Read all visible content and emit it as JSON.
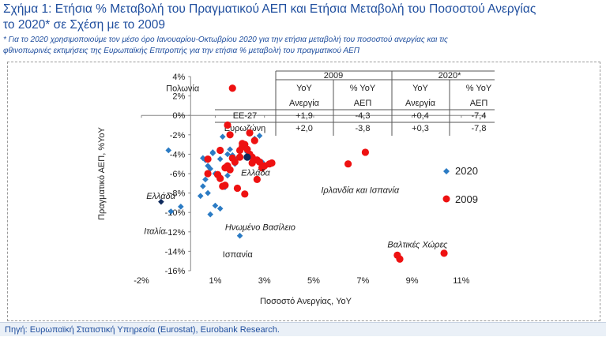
{
  "header": {
    "title_line1": "Σχήμα 1: Ετήσια % Μεταβολή του Πραγματικού ΑΕΠ και Ετήσια Μεταβολή του Ποσοστού Ανεργίας",
    "title_line2": "το 2020* σε Σχέση με το 2009",
    "note_line1": "* Για το 2020 χρησιμοποιούμε τον μέσο όρο Ιανουαρίου-Οκτωβρίου 2020 για την ετήσια μεταβολή του ποσοστού ανεργίας και τις",
    "note_line2": "φθινοπωρινές εκτιμήσεις της Ευρωπαϊκής Επιτροπής για την ετήσια % μεταβολή του πραγματικού ΑΕΠ"
  },
  "footer": {
    "source": "Πηγή: Ευρωπαϊκή Στατιστική Υπηρεσία (Eurostat), Eurobank Research."
  },
  "chart_data": {
    "type": "scatter",
    "xlabel": "Ποσοστό Ανεργίας, YoY",
    "ylabel": "Πραγματικό ΑΕΠ, %YoY",
    "xlim": [
      -2,
      12
    ],
    "ylim": [
      -16,
      4
    ],
    "x_ticks": [
      "-2%",
      "1%",
      "3%",
      "5%",
      "7%",
      "9%",
      "11%"
    ],
    "x_tick_values": [
      -2,
      1,
      3,
      5,
      7,
      9,
      11
    ],
    "y_ticks": [
      "4%",
      "2%",
      "0%",
      "-2%",
      "-4%",
      "-6%",
      "-8%",
      "-10%",
      "-12%",
      "-14%",
      "-16%"
    ],
    "y_tick_values": [
      4,
      2,
      0,
      -2,
      -4,
      -6,
      -8,
      -10,
      -12,
      -14,
      -16
    ],
    "grid": false,
    "legend_position": "right",
    "series": [
      {
        "name": "2020",
        "marker": "diamond",
        "color": "#2b7bc4",
        "points": [
          [
            -0.9,
            -3.6
          ],
          [
            0.5,
            -4.4
          ],
          [
            0.6,
            -4.6
          ],
          [
            0.7,
            -5.2
          ],
          [
            0.8,
            -5.5
          ],
          [
            0.9,
            -3.8
          ],
          [
            0.6,
            -6.6
          ],
          [
            0.5,
            -7.3
          ],
          [
            0.4,
            -8.3
          ],
          [
            0.7,
            -8.0
          ],
          [
            1.0,
            -9.3
          ],
          [
            0.8,
            -10.2
          ],
          [
            1.2,
            -9.6
          ],
          [
            -0.4,
            -9.4
          ],
          [
            1.0,
            -6.0
          ],
          [
            1.2,
            -6.3
          ],
          [
            1.4,
            -7.4
          ],
          [
            1.5,
            -6.2
          ],
          [
            1.2,
            -4.5
          ],
          [
            1.5,
            -4.0
          ],
          [
            1.7,
            -4.1
          ],
          [
            1.9,
            -4.4
          ],
          [
            2.3,
            -3.8
          ],
          [
            2.2,
            -3.0
          ],
          [
            2.6,
            -2.4
          ],
          [
            2.8,
            -2.1
          ],
          [
            1.3,
            -2.2
          ],
          [
            2.9,
            -4.8
          ],
          [
            -0.8,
            -9.9
          ],
          [
            1.8,
            -5.0
          ],
          [
            2.0,
            -12.4
          ],
          [
            1.6,
            -3.5
          ],
          [
            0.9,
            -3.9
          ]
        ]
      },
      {
        "name": "2009",
        "marker": "circle",
        "color": "#ee1111",
        "points": [
          [
            1.1,
            -6.1
          ],
          [
            1.2,
            -6.5
          ],
          [
            1.3,
            -7.3
          ],
          [
            1.4,
            -5.4
          ],
          [
            1.5,
            -5.2
          ],
          [
            1.6,
            -5.6
          ],
          [
            1.7,
            -4.4
          ],
          [
            1.8,
            -4.8
          ],
          [
            2.0,
            -3.6
          ],
          [
            2.1,
            -3.2
          ],
          [
            2.2,
            -3.0
          ],
          [
            2.3,
            -3.5
          ],
          [
            2.4,
            -4.0
          ],
          [
            2.5,
            -4.3
          ],
          [
            2.7,
            -4.6
          ],
          [
            2.8,
            -4.8
          ],
          [
            3.0,
            -5.2
          ],
          [
            3.2,
            -5.0
          ],
          [
            3.3,
            -4.9
          ],
          [
            2.9,
            -5.4
          ],
          [
            2.6,
            -2.6
          ],
          [
            2.4,
            -1.8
          ],
          [
            1.5,
            -1.0
          ],
          [
            1.6,
            -2.0
          ],
          [
            2.5,
            -4.9
          ],
          [
            1.2,
            -3.6
          ],
          [
            0.7,
            -6.0
          ],
          [
            0.7,
            -4.5
          ],
          [
            1.4,
            -7.2
          ],
          [
            2.2,
            -8.1
          ],
          [
            2.7,
            -6.6
          ],
          [
            6.4,
            -5.0
          ],
          [
            7.1,
            -3.8
          ],
          [
            8.4,
            -14.4
          ],
          [
            8.5,
            -14.8
          ],
          [
            10.3,
            -14.2
          ],
          [
            1.7,
            2.8
          ],
          [
            2.1,
            -2.9
          ],
          [
            1.9,
            -7.5
          ],
          [
            2.0,
            -4.3
          ]
        ]
      },
      {
        "name": "",
        "marker": "diamond",
        "color": "#0f2a5c",
        "points": [
          [
            -1.2,
            -8.9
          ]
        ]
      },
      {
        "name": "",
        "marker": "circle",
        "color": "#0f2a5c",
        "points": [
          [
            2.3,
            -4.3
          ]
        ]
      }
    ],
    "annotations": [
      {
        "text": "Πολωνία",
        "x": -1.0,
        "y": 2.5,
        "italic": false
      },
      {
        "text": "Ελλάδα",
        "x": -1.8,
        "y": -8.6,
        "italic": true
      },
      {
        "text": "Ελλάδα",
        "x": 2.05,
        "y": -6.2,
        "italic": true
      },
      {
        "text": "Ιταλία",
        "x": -1.9,
        "y": -12.2,
        "italic": true
      },
      {
        "text": "Ηνωμένο Βασίλειο",
        "x": 1.4,
        "y": -11.8,
        "italic": true
      },
      {
        "text": "Ισπανία",
        "x": 1.3,
        "y": -14.6,
        "italic": false
      },
      {
        "text": "Ιρλανδία και Ισπανία",
        "x": 5.3,
        "y": -8.0,
        "italic": true
      },
      {
        "text": "Βαλτικές Χώρες",
        "x": 8.0,
        "y": -13.6,
        "italic": true
      }
    ],
    "table": {
      "year_2009": "2009",
      "year_2020": "2020*",
      "col_yoy": "YoY",
      "col_pct_yoy": "% YoY",
      "col_unemp": "Ανεργία",
      "col_gdp": "ΑΕΠ",
      "rows": [
        {
          "label": "ΕΕ-27",
          "v2009_unemp": "+1,9",
          "v2009_gdp": "-4,3",
          "v2020_unemp": "+0,4",
          "v2020_gdp": "-7,4"
        },
        {
          "label": "Ευρωζώνη",
          "v2009_unemp": "+2,0",
          "v2009_gdp": "-3,8",
          "v2020_unemp": "+0,3",
          "v2020_gdp": "-7,8"
        }
      ]
    }
  }
}
